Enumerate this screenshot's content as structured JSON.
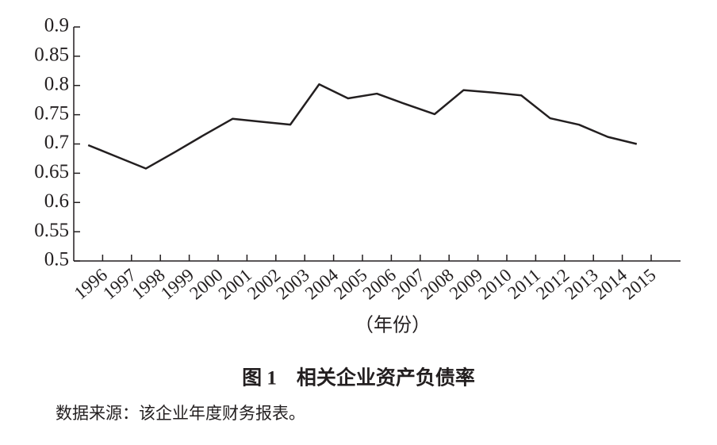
{
  "chart_data": {
    "type": "line",
    "title": "图 1　相关企业资产负债率",
    "x_label": "（年份）",
    "source": "数据来源：该企业年度财务报表。",
    "categories": [
      "1996",
      "1997",
      "1998",
      "1999",
      "2000",
      "2001",
      "2002",
      "2003",
      "2004",
      "2005",
      "2006",
      "2007",
      "2008",
      "2009",
      "2010",
      "2011",
      "2012",
      "2013",
      "2014",
      "2015"
    ],
    "series": [
      {
        "name": "资产负债率",
        "color": "#231f20",
        "values": [
          0.698,
          0.678,
          0.658,
          0.686,
          0.715,
          0.743,
          0.738,
          0.733,
          0.802,
          0.778,
          0.786,
          0.768,
          0.751,
          0.792,
          0.788,
          0.783,
          0.744,
          0.733,
          0.712,
          0.7
        ]
      }
    ],
    "ylim": [
      0.5,
      0.9
    ],
    "yticks": [
      0.5,
      0.55,
      0.6,
      0.65,
      0.7,
      0.75,
      0.8,
      0.85,
      0.9
    ],
    "grid": false
  }
}
